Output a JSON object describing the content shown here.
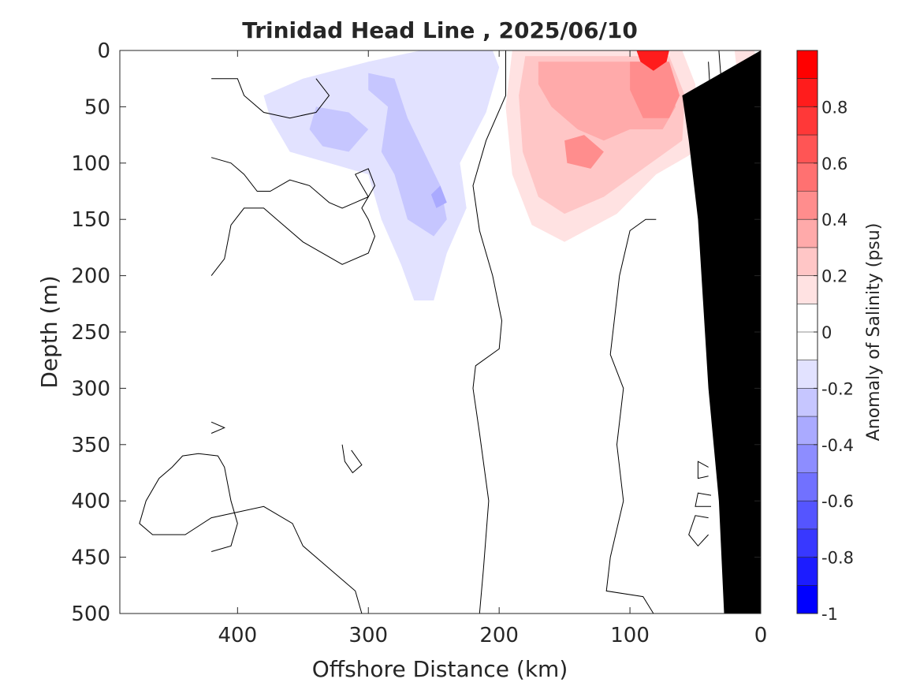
{
  "chart_data": {
    "type": "contour",
    "title": "Trinidad Head Line , 2025/06/10",
    "xlabel": "Offshore Distance (km)",
    "ylabel": "Depth (m)",
    "colorbar_label": "Anomaly of Salinity (psu)",
    "xlim": [
      490,
      0
    ],
    "ylim": [
      0,
      500
    ],
    "x_reversed": true,
    "y_reversed": true,
    "grid": false,
    "x_ticks": [
      400,
      300,
      200,
      100,
      0
    ],
    "x_tick_labels": [
      "400",
      "300",
      "200",
      "100",
      "0"
    ],
    "y_ticks": [
      0,
      50,
      100,
      150,
      200,
      250,
      300,
      350,
      400,
      450,
      500
    ],
    "y_tick_labels": [
      "0",
      "50",
      "100",
      "150",
      "200",
      "250",
      "300",
      "350",
      "400",
      "450",
      "500"
    ],
    "colorbar": {
      "range": [
        -1,
        1
      ],
      "ticks": [
        0.8,
        0.6,
        0.4,
        0.2,
        0,
        -0.2,
        -0.4,
        -0.6,
        -0.8,
        -1
      ],
      "tick_labels": [
        "0.8",
        "0.6",
        "0.4",
        "0.2",
        "0",
        "-0.2",
        "-0.4",
        "-0.6",
        "-0.8",
        "-1"
      ],
      "levels": [
        {
          "from": 0.9,
          "to": 1.0,
          "color": "#ff0000"
        },
        {
          "from": 0.8,
          "to": 0.9,
          "color": "#ff1c1c"
        },
        {
          "from": 0.7,
          "to": 0.8,
          "color": "#ff3838"
        },
        {
          "from": 0.6,
          "to": 0.7,
          "color": "#ff5555"
        },
        {
          "from": 0.5,
          "to": 0.6,
          "color": "#ff7171"
        },
        {
          "from": 0.4,
          "to": 0.5,
          "color": "#ff8d8d"
        },
        {
          "from": 0.3,
          "to": 0.4,
          "color": "#ffaaaa"
        },
        {
          "from": 0.2,
          "to": 0.3,
          "color": "#ffc6c6"
        },
        {
          "from": 0.1,
          "to": 0.2,
          "color": "#ffe2e2"
        },
        {
          "from": 0.0,
          "to": 0.1,
          "color": "#ffffff"
        },
        {
          "from": -0.1,
          "to": 0.0,
          "color": "#ffffff"
        },
        {
          "from": -0.2,
          "to": -0.1,
          "color": "#e2e2ff"
        },
        {
          "from": -0.3,
          "to": -0.2,
          "color": "#c6c6ff"
        },
        {
          "from": -0.4,
          "to": -0.3,
          "color": "#aaaaff"
        },
        {
          "from": -0.5,
          "to": -0.4,
          "color": "#8d8dff"
        },
        {
          "from": -0.6,
          "to": -0.5,
          "color": "#7171ff"
        },
        {
          "from": -0.7,
          "to": -0.6,
          "color": "#5555ff"
        },
        {
          "from": -0.8,
          "to": -0.7,
          "color": "#3838ff"
        },
        {
          "from": -0.9,
          "to": -0.8,
          "color": "#1c1cff"
        },
        {
          "from": -1.0,
          "to": -0.9,
          "color": "#0000ff"
        }
      ]
    },
    "anomaly_regions": [
      {
        "name": "negative-core-offshore",
        "value": -0.15,
        "color": "#e2e2ff",
        "outline": [
          [
            350,
            25
          ],
          [
            300,
            10
          ],
          [
            260,
            0
          ],
          [
            205,
            0
          ],
          [
            200,
            15
          ],
          [
            210,
            55
          ],
          [
            230,
            100
          ],
          [
            225,
            140
          ],
          [
            240,
            180
          ],
          [
            250,
            222
          ],
          [
            265,
            222
          ],
          [
            275,
            190
          ],
          [
            290,
            150
          ],
          [
            300,
            110
          ],
          [
            330,
            100
          ],
          [
            360,
            90
          ],
          [
            375,
            60
          ],
          [
            380,
            40
          ]
        ]
      },
      {
        "name": "negative-subcore-1",
        "value": -0.25,
        "color": "#c6c6ff",
        "outline": [
          [
            340,
            50
          ],
          [
            315,
            55
          ],
          [
            300,
            70
          ],
          [
            315,
            90
          ],
          [
            335,
            85
          ],
          [
            345,
            70
          ]
        ]
      },
      {
        "name": "negative-subcore-2",
        "value": -0.25,
        "color": "#c6c6ff",
        "outline": [
          [
            300,
            20
          ],
          [
            280,
            25
          ],
          [
            270,
            60
          ],
          [
            245,
            120
          ],
          [
            240,
            150
          ],
          [
            250,
            165
          ],
          [
            270,
            150
          ],
          [
            280,
            110
          ],
          [
            290,
            90
          ],
          [
            285,
            50
          ],
          [
            300,
            35
          ]
        ]
      },
      {
        "name": "negative-subcore-3",
        "value": -0.3,
        "color": "#aaaaff",
        "outline": [
          [
            245,
            120
          ],
          [
            240,
            135
          ],
          [
            248,
            140
          ],
          [
            252,
            128
          ]
        ]
      },
      {
        "name": "positive-core-nearshore",
        "value": 0.15,
        "color": "#ffe2e2",
        "outline": [
          [
            190,
            0
          ],
          [
            60,
            0
          ],
          [
            50,
            30
          ],
          [
            50,
            90
          ],
          [
            80,
            110
          ],
          [
            110,
            145
          ],
          [
            150,
            170
          ],
          [
            175,
            155
          ],
          [
            190,
            110
          ],
          [
            195,
            50
          ]
        ]
      },
      {
        "name": "positive-subcore-1",
        "value": 0.25,
        "color": "#ffc6c6",
        "outline": [
          [
            180,
            5
          ],
          [
            70,
            5
          ],
          [
            58,
            40
          ],
          [
            60,
            80
          ],
          [
            90,
            105
          ],
          [
            120,
            130
          ],
          [
            150,
            145
          ],
          [
            170,
            130
          ],
          [
            182,
            90
          ],
          [
            185,
            40
          ]
        ]
      },
      {
        "name": "positive-subcore-2",
        "value": 0.35,
        "color": "#ffaaaa",
        "outline": [
          [
            170,
            10
          ],
          [
            75,
            10
          ],
          [
            65,
            50
          ],
          [
            75,
            70
          ],
          [
            100,
            70
          ],
          [
            120,
            80
          ],
          [
            140,
            70
          ],
          [
            160,
            50
          ],
          [
            170,
            30
          ]
        ]
      },
      {
        "name": "positive-subcore-3",
        "value": 0.45,
        "color": "#ff8d8d",
        "outline": [
          [
            100,
            10
          ],
          [
            70,
            10
          ],
          [
            62,
            40
          ],
          [
            70,
            60
          ],
          [
            90,
            60
          ],
          [
            100,
            35
          ]
        ]
      },
      {
        "name": "positive-subcore-4",
        "value": 0.45,
        "color": "#ff8d8d",
        "outline": [
          [
            150,
            80
          ],
          [
            135,
            75
          ],
          [
            120,
            90
          ],
          [
            130,
            105
          ],
          [
            148,
            100
          ]
        ]
      },
      {
        "name": "positive-peak",
        "value": 0.85,
        "color": "#ff1c1c",
        "outline": [
          [
            95,
            0
          ],
          [
            70,
            0
          ],
          [
            72,
            10
          ],
          [
            82,
            18
          ],
          [
            92,
            10
          ]
        ]
      },
      {
        "name": "positive-coastal",
        "value": 0.15,
        "color": "#ffe2e2",
        "outline": [
          [
            20,
            0
          ],
          [
            5,
            0
          ],
          [
            0,
            20
          ],
          [
            8,
            30
          ],
          [
            18,
            20
          ]
        ]
      }
    ],
    "contour_lines": [
      [
        [
          420,
          25
        ],
        [
          400,
          25
        ],
        [
          395,
          40
        ],
        [
          380,
          55
        ],
        [
          360,
          60
        ],
        [
          340,
          55
        ],
        [
          330,
          40
        ],
        [
          340,
          25
        ]
      ],
      [
        [
          420,
          95
        ],
        [
          405,
          100
        ],
        [
          395,
          110
        ],
        [
          385,
          125
        ],
        [
          375,
          125
        ],
        [
          360,
          115
        ],
        [
          345,
          120
        ],
        [
          330,
          135
        ],
        [
          320,
          140
        ],
        [
          310,
          135
        ],
        [
          300,
          130
        ],
        [
          305,
          120
        ],
        [
          310,
          110
        ],
        [
          300,
          105
        ],
        [
          295,
          120
        ],
        [
          305,
          140
        ],
        [
          300,
          150
        ],
        [
          295,
          165
        ],
        [
          300,
          180
        ],
        [
          320,
          190
        ],
        [
          350,
          170
        ],
        [
          370,
          150
        ],
        [
          380,
          140
        ],
        [
          395,
          140
        ],
        [
          405,
          155
        ],
        [
          410,
          185
        ],
        [
          420,
          200
        ]
      ],
      [
        [
          195,
          0
        ],
        [
          195,
          40
        ],
        [
          210,
          80
        ],
        [
          220,
          120
        ],
        [
          215,
          160
        ],
        [
          205,
          200
        ],
        [
          198,
          240
        ],
        [
          200,
          265
        ],
        [
          218,
          280
        ],
        [
          220,
          300
        ],
        [
          215,
          340
        ],
        [
          208,
          400
        ],
        [
          212,
          460
        ],
        [
          215,
          500
        ]
      ],
      [
        [
          80,
          150
        ],
        [
          88,
          150
        ],
        [
          100,
          160
        ],
        [
          108,
          200
        ],
        [
          115,
          270
        ],
        [
          105,
          300
        ],
        [
          110,
          350
        ],
        [
          105,
          400
        ],
        [
          115,
          450
        ],
        [
          118,
          480
        ],
        [
          90,
          485
        ],
        [
          82,
          500
        ]
      ],
      [
        [
          40,
          10
        ],
        [
          38,
          50
        ],
        [
          40,
          100
        ],
        [
          42,
          150
        ],
        [
          44,
          200
        ],
        [
          40,
          240
        ],
        [
          32,
          230
        ],
        [
          30,
          180
        ],
        [
          30,
          100
        ],
        [
          30,
          30
        ],
        [
          32,
          0
        ]
      ],
      [
        [
          420,
          330
        ],
        [
          410,
          335
        ],
        [
          420,
          340
        ]
      ],
      [
        [
          420,
          445
        ],
        [
          405,
          440
        ],
        [
          400,
          420
        ],
        [
          405,
          400
        ],
        [
          410,
          370
        ],
        [
          415,
          360
        ],
        [
          430,
          358
        ],
        [
          442,
          360
        ],
        [
          450,
          370
        ],
        [
          460,
          380
        ],
        [
          470,
          400
        ],
        [
          475,
          420
        ],
        [
          465,
          430
        ],
        [
          440,
          430
        ],
        [
          420,
          415
        ],
        [
          380,
          405
        ],
        [
          358,
          420
        ],
        [
          350,
          440
        ],
        [
          330,
          460
        ],
        [
          310,
          480
        ],
        [
          305,
          500
        ]
      ],
      [
        [
          320,
          350
        ],
        [
          318,
          365
        ],
        [
          312,
          375
        ],
        [
          305,
          368
        ],
        [
          313,
          355
        ]
      ],
      [
        [
          40,
          370
        ],
        [
          48,
          365
        ],
        [
          48,
          380
        ],
        [
          40,
          378
        ]
      ],
      [
        [
          38,
          395
        ],
        [
          48,
          393
        ],
        [
          50,
          405
        ],
        [
          38,
          405
        ]
      ],
      [
        [
          40,
          415
        ],
        [
          50,
          413
        ],
        [
          55,
          430
        ],
        [
          48,
          440
        ],
        [
          40,
          430
        ]
      ]
    ],
    "land_polygon": [
      [
        0,
        0
      ],
      [
        0,
        500
      ],
      [
        28,
        500
      ],
      [
        32,
        400
      ],
      [
        40,
        300
      ],
      [
        48,
        150
      ],
      [
        55,
        80
      ],
      [
        60,
        40
      ],
      [
        0,
        0
      ]
    ]
  }
}
